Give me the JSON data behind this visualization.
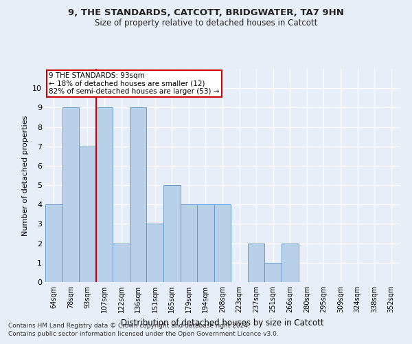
{
  "title1": "9, THE STANDARDS, CATCOTT, BRIDGWATER, TA7 9HN",
  "title2": "Size of property relative to detached houses in Catcott",
  "xlabel": "Distribution of detached houses by size in Catcott",
  "ylabel": "Number of detached properties",
  "categories": [
    "64sqm",
    "78sqm",
    "93sqm",
    "107sqm",
    "122sqm",
    "136sqm",
    "151sqm",
    "165sqm",
    "179sqm",
    "194sqm",
    "208sqm",
    "223sqm",
    "237sqm",
    "251sqm",
    "266sqm",
    "280sqm",
    "295sqm",
    "309sqm",
    "324sqm",
    "338sqm",
    "352sqm"
  ],
  "values": [
    4,
    9,
    7,
    9,
    2,
    9,
    3,
    5,
    4,
    4,
    4,
    0,
    2,
    1,
    2,
    0,
    0,
    0,
    0,
    0,
    0
  ],
  "bar_color": "#b8d0e8",
  "bar_edge_color": "#6699cc",
  "highlight_index": 2,
  "red_line_x": 2,
  "annotation_line1": "9 THE STANDARDS: 93sqm",
  "annotation_line2": "← 18% of detached houses are smaller (12)",
  "annotation_line3": "82% of semi-detached houses are larger (53) →",
  "annotation_box_color": "#ffffff",
  "annotation_box_edge": "#cc0000",
  "ylim": [
    0,
    11
  ],
  "yticks": [
    0,
    1,
    2,
    3,
    4,
    5,
    6,
    7,
    8,
    9,
    10
  ],
  "footer1": "Contains HM Land Registry data © Crown copyright and database right 2024.",
  "footer2": "Contains public sector information licensed under the Open Government Licence v3.0.",
  "bg_color": "#e8eef8",
  "grid_color": "#ffffff"
}
